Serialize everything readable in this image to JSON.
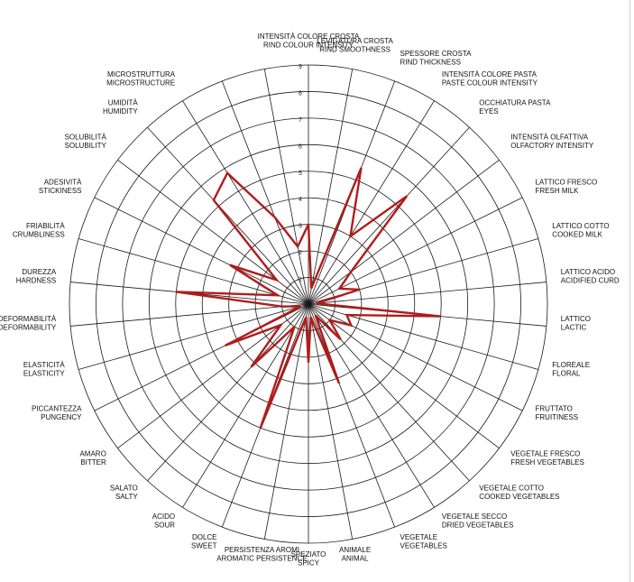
{
  "chart_data": {
    "type": "radar",
    "title": "",
    "rmax": 9,
    "ticks": [
      "1",
      "2",
      "3",
      "4",
      "5",
      "6",
      "7",
      "8",
      "9"
    ],
    "grid": true,
    "series_color": "#b01c1c",
    "axes": [
      {
        "label": [
          "INTENSITÀ COLORE CROSTA",
          "RIND COLOUR INTENSITY"
        ],
        "value": 3
      },
      {
        "label": [
          "LEVIGATURA CROSTA",
          "RIND SMOOTHNESS"
        ],
        "value": 0.6
      },
      {
        "label": [
          "SPESSORE CROSTA",
          "RIND THICKNESS"
        ],
        "value": 5.5
      },
      {
        "label": [
          "INTENSITÀ COLORE PASTA",
          "PASTE COLOUR INTENSITY"
        ],
        "value": 3
      },
      {
        "label": [
          "OCCHIATURA PASTA",
          "EYES"
        ],
        "value": 5.5
      },
      {
        "label": [
          "INTENSITÀ OLFATTIVA",
          "OLFACTORY INTENSITY"
        ],
        "value": 2
      },
      {
        "label": [
          "LATTICO FRESCO",
          "FRESH MILK"
        ],
        "value": 1.3
      },
      {
        "label": [
          "LATTICO COTTO",
          "COOKED MILK"
        ],
        "value": 2
      },
      {
        "label": [
          "LATTICO ACIDO",
          "ACIDIFIED CURD"
        ],
        "value": 0.3
      },
      {
        "label": [
          "LATTICO",
          "LACTIC"
        ],
        "value": 5
      },
      {
        "label": [
          "FLOREALE",
          "FLORAL"
        ],
        "value": 1.5
      },
      {
        "label": [
          "FRUTTATO",
          "FRUITINESS"
        ],
        "value": 1.8
      },
      {
        "label": [
          "VEGETALE FRESCO",
          "FRESH VEGETABLES"
        ],
        "value": 1
      },
      {
        "label": [
          "VEGETALE COTTO",
          "COOKED VEGETABLES"
        ],
        "value": 1.8
      },
      {
        "label": [
          "VEGETALE SECCO",
          "DRIED VEGETABLES"
        ],
        "value": 0.5
      },
      {
        "label": [
          "VEGETALE",
          "VEGETABLES"
        ],
        "value": 3.2
      },
      {
        "label": [
          "ANIMALE",
          "ANIMAL"
        ],
        "value": 0.5
      },
      {
        "label": [
          "SPEZIATO",
          "SPICY"
        ],
        "value": 2.2
      },
      {
        "label": [
          "PERSISTENZA AROMI",
          "AROMATIC PERSISTENCE"
        ],
        "value": 0.5
      },
      {
        "label": [
          "DOLCE",
          "SWEET"
        ],
        "value": 5
      },
      {
        "label": [
          "ACIDO",
          "SOUR"
        ],
        "value": 1
      },
      {
        "label": [
          "SALATO",
          "SALTY"
        ],
        "value": 3.2
      },
      {
        "label": [
          "AMARO",
          "BITTER"
        ],
        "value": 1.3
      },
      {
        "label": [
          "PICCANTEZZA",
          "PUNGENCY"
        ],
        "value": 3.5
      },
      {
        "label": [
          "ELASTICITÀ",
          "ELASTICITY"
        ],
        "value": 0.3
      },
      {
        "label": [
          "DEFORMABILITÀ",
          "DEFORMABILITY"
        ],
        "value": 1
      },
      {
        "label": [
          "DUREZZA",
          "HARDNESS"
        ],
        "value": 5
      },
      {
        "label": [
          "FRIABILITÀ",
          "CRUMBLINESS"
        ],
        "value": 1.2
      },
      {
        "label": [
          "ADESIVITÀ",
          "STICKINESS"
        ],
        "value": 3.3
      },
      {
        "label": [
          "SOLUBILITÀ",
          "SOLUBILITY"
        ],
        "value": 1.5
      },
      {
        "label": [
          "UMIDITÀ",
          "HUMIDITY"
        ],
        "value": 5.3
      },
      {
        "label": [
          "MICROSTRUTTURA",
          "MICROSTRUCTURE"
        ],
        "value": 5.8
      },
      {
        "label": [
          "",
          ""
        ],
        "value": 3.5
      },
      {
        "label": [
          "",
          ""
        ],
        "value": 2.2
      }
    ]
  }
}
